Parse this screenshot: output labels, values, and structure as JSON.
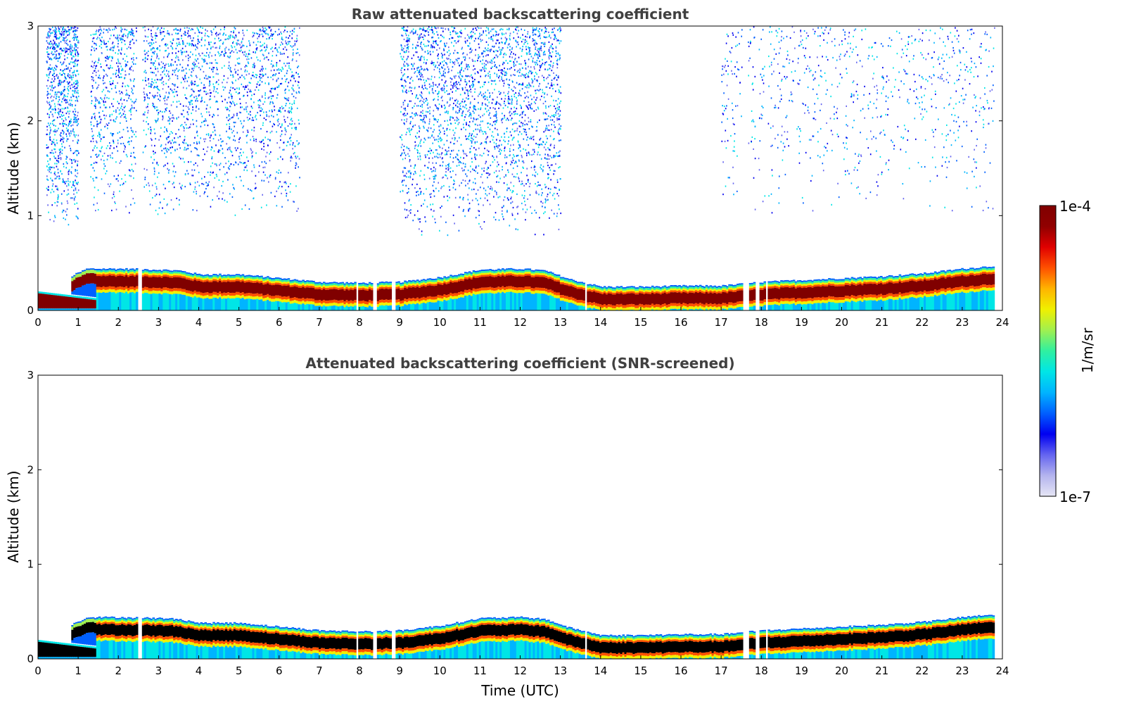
{
  "chart_data": [
    {
      "type": "heatmap",
      "title": "Raw attenuated backscattering coefficient",
      "xlabel": "",
      "ylabel": "Altitude (km)",
      "xlim": [
        0,
        24
      ],
      "ylim": [
        0,
        3
      ],
      "xticks": [
        "0",
        "1",
        "2",
        "3",
        "4",
        "5",
        "6",
        "7",
        "8",
        "9",
        "10",
        "11",
        "12",
        "13",
        "14",
        "15",
        "16",
        "17",
        "18",
        "19",
        "20",
        "21",
        "22",
        "23",
        "24"
      ],
      "yticks": [
        "0",
        "1",
        "2",
        "3"
      ],
      "grid": false,
      "data_end_time": 23.8,
      "aerosol_layer_top": {
        "time": [
          0,
          0.9,
          1.2,
          2.0,
          3.0,
          3.5,
          4.0,
          5.0,
          6.0,
          7.0,
          8.0,
          9.0,
          10.0,
          11.0,
          12.0,
          12.6,
          13.2,
          14.0,
          15.0,
          16.0,
          17.0,
          18.0,
          19.0,
          20.0,
          21.0,
          22.0,
          23.0,
          23.8
        ],
        "altitude_km": [
          0.2,
          0.38,
          0.44,
          0.44,
          0.43,
          0.42,
          0.38,
          0.38,
          0.34,
          0.3,
          0.29,
          0.3,
          0.35,
          0.43,
          0.44,
          0.42,
          0.33,
          0.25,
          0.25,
          0.26,
          0.26,
          0.3,
          0.32,
          0.34,
          0.36,
          0.39,
          0.44,
          0.47
        ]
      },
      "sparse_noise_regions": [
        {
          "time_range": [
            0.2,
            1.0
          ],
          "altitude_km": [
            0.9,
            3.0
          ],
          "density": "medium"
        },
        {
          "time_range": [
            1.3,
            6.5
          ],
          "altitude_km": [
            1.0,
            3.0
          ],
          "density": "high"
        },
        {
          "time_range": [
            9.0,
            13.0
          ],
          "altitude_km": [
            0.8,
            3.0
          ],
          "density": "high"
        },
        {
          "time_range": [
            17.0,
            23.8
          ],
          "altitude_km": [
            1.0,
            3.0
          ],
          "density": "medium"
        }
      ]
    },
    {
      "type": "heatmap",
      "title": "Attenuated backscattering coefficient (SNR-screened)",
      "xlabel": "Time (UTC)",
      "ylabel": "Altitude (km)",
      "xlim": [
        0,
        24
      ],
      "ylim": [
        0,
        3
      ],
      "xticks": [
        "0",
        "1",
        "2",
        "3",
        "4",
        "5",
        "6",
        "7",
        "8",
        "9",
        "10",
        "11",
        "12",
        "13",
        "14",
        "15",
        "16",
        "17",
        "18",
        "19",
        "20",
        "21",
        "22",
        "23",
        "24"
      ],
      "yticks": [
        "0",
        "1",
        "2",
        "3"
      ],
      "grid": false,
      "data_end_time": 23.8,
      "screened_high_value_color": "#000000"
    }
  ],
  "colorbar": {
    "label": "1/m/sr",
    "max_label": "1e-4",
    "min_label": "1e-7",
    "colormap": "jet",
    "stops": [
      "#e6e6f5",
      "#b4b4ee",
      "#6464f0",
      "#0000f0",
      "#0060ff",
      "#00b4ff",
      "#00e6e6",
      "#30f0a0",
      "#a0f050",
      "#f0f000",
      "#ffb400",
      "#ff5000",
      "#e00000",
      "#900000",
      "#800000"
    ]
  },
  "gap_times": [
    2.48,
    2.55,
    7.93,
    8.35,
    8.78,
    8.84,
    13.6,
    17.55,
    17.62,
    17.88,
    18.12
  ]
}
